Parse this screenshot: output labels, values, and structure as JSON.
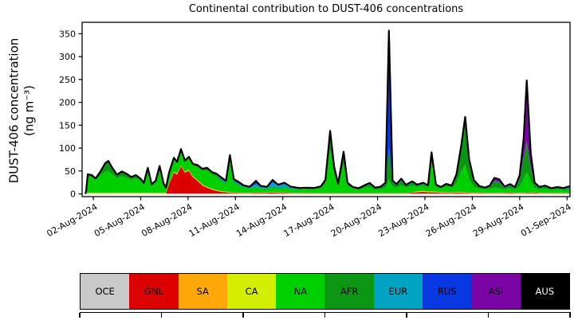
{
  "chart_data": {
    "type": "area",
    "title": "Continental contribution to DUST-406 concentrations",
    "ylabel_line1": "DUST-406 concentration",
    "ylabel_line2": "(ng m⁻³)",
    "ylim": [
      0,
      370
    ],
    "yticks": [
      0,
      50,
      100,
      150,
      200,
      250,
      300,
      350
    ],
    "xticks": [
      {
        "d": 1,
        "label": "02-Aug-2024"
      },
      {
        "d": 4,
        "label": "05-Aug-2024"
      },
      {
        "d": 7,
        "label": "08-Aug-2024"
      },
      {
        "d": 10,
        "label": "11-Aug-2024"
      },
      {
        "d": 13,
        "label": "14-Aug-2024"
      },
      {
        "d": 16,
        "label": "17-Aug-2024"
      },
      {
        "d": 19,
        "label": "20-Aug-2024"
      },
      {
        "d": 22,
        "label": "23-Aug-2024"
      },
      {
        "d": 25,
        "label": "26-Aug-2024"
      },
      {
        "d": 28,
        "label": "29-Aug-2024"
      },
      {
        "d": 31,
        "label": "01-Sep-2024"
      }
    ],
    "legend_position": "bottom",
    "grid": false,
    "total_line_color": "#000000",
    "regions": [
      {
        "code": "OCE",
        "color": "#c9c9c9",
        "label_color": "#000000"
      },
      {
        "code": "GNL",
        "color": "#dd0000",
        "label_color": "#000000"
      },
      {
        "code": "SA",
        "color": "#ffa808",
        "label_color": "#000000"
      },
      {
        "code": "CA",
        "color": "#d4ee00",
        "label_color": "#000000"
      },
      {
        "code": "NA",
        "color": "#00cf00",
        "label_color": "#000000"
      },
      {
        "code": "AFR",
        "color": "#0b9614",
        "label_color": "#000000"
      },
      {
        "code": "EUR",
        "color": "#00a3c2",
        "label_color": "#000000"
      },
      {
        "code": "RUS",
        "color": "#0839e0",
        "label_color": "#000000"
      },
      {
        "code": "ASI",
        "color": "#7a04a4",
        "label_color": "#000000"
      },
      {
        "code": "AUS",
        "color": "#000000",
        "label_color": "#ffffff"
      }
    ],
    "columns": [
      "x_days_from_01Aug2024",
      "OCE",
      "GNL",
      "SA",
      "CA",
      "NA",
      "AFR",
      "EUR",
      "RUS",
      "ASI",
      "AUS"
    ],
    "points": [
      [
        0.5,
        0,
        0,
        0,
        0,
        0,
        0,
        0,
        0,
        0,
        0
      ],
      [
        0.55,
        0.4,
        0,
        0.8,
        1.2,
        4,
        0.5,
        0,
        0.3,
        0,
        0
      ],
      [
        0.65,
        0.4,
        0,
        0.8,
        1.2,
        36,
        4,
        0,
        0.5,
        0,
        0
      ],
      [
        0.9,
        0.4,
        0,
        0.8,
        1.2,
        34,
        4,
        0,
        0.5,
        0,
        0
      ],
      [
        1.15,
        0.4,
        0,
        0.8,
        1.2,
        28,
        3,
        0,
        0.5,
        0,
        0
      ],
      [
        1.45,
        0.4,
        0,
        0.8,
        1.2,
        38,
        8,
        0,
        0.5,
        0,
        0
      ],
      [
        1.75,
        0.4,
        0,
        0.8,
        1.2,
        46,
        18,
        0,
        0.5,
        0,
        0
      ],
      [
        1.95,
        0.4,
        0,
        0.8,
        1.2,
        48,
        21,
        0,
        0.5,
        0,
        0
      ],
      [
        2.2,
        0.4,
        0,
        0.8,
        1.2,
        40,
        14,
        0,
        0.5,
        0,
        0
      ],
      [
        2.5,
        0.4,
        0,
        0.8,
        1.2,
        32,
        7,
        0,
        0.5,
        0,
        0
      ],
      [
        2.8,
        0.4,
        0,
        0.8,
        1.2,
        36,
        10,
        0,
        0.5,
        0,
        0
      ],
      [
        3.1,
        0.4,
        0,
        0.8,
        1.2,
        33,
        8,
        0,
        0.5,
        0,
        0
      ],
      [
        3.4,
        0.4,
        0,
        0.8,
        1.2,
        29,
        5,
        0,
        0.5,
        0,
        0
      ],
      [
        3.7,
        0.4,
        0,
        0.8,
        1.2,
        32,
        6,
        0,
        0.5,
        0,
        0
      ],
      [
        4.0,
        0.4,
        0,
        0.8,
        1.2,
        26,
        4,
        0,
        0.5,
        0,
        0
      ],
      [
        4.2,
        0.4,
        0,
        0.8,
        1.2,
        19,
        2,
        0,
        0.5,
        0,
        0
      ],
      [
        4.45,
        0.4,
        0,
        0.8,
        1.2,
        44,
        10,
        0,
        0.5,
        0,
        0
      ],
      [
        4.7,
        0.4,
        0,
        0.8,
        1.2,
        16,
        2,
        0,
        0.5,
        0,
        0
      ],
      [
        4.95,
        0.4,
        0,
        0.8,
        1.2,
        22,
        4,
        0,
        0.5,
        0,
        0
      ],
      [
        5.2,
        0.4,
        0,
        0.8,
        1.2,
        48,
        10,
        0,
        0.5,
        0,
        0
      ],
      [
        5.45,
        0.4,
        0,
        0.8,
        1.2,
        18,
        2,
        0,
        0.5,
        0,
        0
      ],
      [
        5.6,
        0.4,
        0,
        0.8,
        1.2,
        10,
        1,
        0,
        0.5,
        0,
        0
      ],
      [
        5.8,
        0.4,
        22,
        0.8,
        1.2,
        20,
        2,
        0,
        0.5,
        0,
        0
      ],
      [
        6.1,
        0.4,
        46,
        0.8,
        1.2,
        26,
        4,
        0,
        0.5,
        0,
        0
      ],
      [
        6.3,
        0.4,
        42,
        0.8,
        1.2,
        22,
        3,
        0,
        0.5,
        0,
        0
      ],
      [
        6.55,
        0.4,
        60,
        0.8,
        1.2,
        30,
        5,
        0,
        0.5,
        0,
        0
      ],
      [
        6.8,
        0.4,
        46,
        0.8,
        1.2,
        20,
        4,
        0,
        0.5,
        0,
        0
      ],
      [
        7.05,
        0.4,
        50,
        0.8,
        1.2,
        24,
        4,
        0,
        0.5,
        0,
        0
      ],
      [
        7.3,
        0.4,
        36,
        0.8,
        1.2,
        24,
        3,
        0,
        0.5,
        0,
        0
      ],
      [
        7.6,
        0.4,
        28,
        0.8,
        1.2,
        28,
        4,
        0,
        0.5,
        0,
        0
      ],
      [
        7.9,
        0.4,
        18,
        0.8,
        1.2,
        30,
        4,
        0,
        0.5,
        0,
        0
      ],
      [
        8.2,
        0.4,
        13,
        0.8,
        1.2,
        36,
        5,
        0,
        0.5,
        0,
        0
      ],
      [
        8.5,
        0.4,
        9,
        0.8,
        1.2,
        32,
        4,
        0,
        0.5,
        0,
        0
      ],
      [
        8.8,
        0.4,
        6,
        0.8,
        1.2,
        29,
        3,
        1.5,
        2,
        0,
        0
      ],
      [
        9.1,
        0.4,
        4,
        0.6,
        1.0,
        22,
        2,
        2.5,
        3.5,
        0,
        0
      ],
      [
        9.4,
        0.4,
        3,
        0.5,
        0.8,
        17,
        2,
        2,
        3,
        0,
        0
      ],
      [
        9.65,
        0.4,
        2,
        0.5,
        0.8,
        68,
        8,
        1.5,
        3,
        0.5,
        0
      ],
      [
        9.9,
        0.4,
        1.5,
        0.5,
        0.8,
        21,
        3,
        1.5,
        3.5,
        0,
        0
      ],
      [
        10.2,
        0.4,
        1.5,
        0.5,
        0.8,
        15,
        2,
        2.5,
        3.5,
        0,
        0
      ],
      [
        10.5,
        0.4,
        1,
        0.4,
        0.6,
        11,
        1.5,
        2,
        2,
        0,
        0
      ],
      [
        10.9,
        0.4,
        1,
        0.4,
        0.6,
        8.5,
        1,
        2,
        1.5,
        0,
        0
      ],
      [
        11.3,
        0.4,
        2,
        0.4,
        0.6,
        11,
        1.5,
        6,
        6,
        0.5,
        0
      ],
      [
        11.6,
        0.4,
        1.5,
        0.4,
        0.6,
        8.5,
        1,
        3,
        2,
        0,
        0
      ],
      [
        12.0,
        0.4,
        2,
        0.4,
        0.6,
        6.5,
        1,
        3,
        1.5,
        0,
        0
      ],
      [
        12.35,
        0.4,
        2.5,
        0.4,
        0.6,
        9.5,
        2,
        10,
        4.5,
        0.5,
        0
      ],
      [
        12.7,
        0.4,
        2,
        0.4,
        0.6,
        8,
        1.5,
        5,
        2,
        0,
        0
      ],
      [
        13.1,
        0.4,
        2,
        0.4,
        0.6,
        9.5,
        1.5,
        7,
        3,
        0,
        0
      ],
      [
        13.5,
        0.4,
        1,
        0.4,
        0.6,
        8,
        1,
        3.5,
        1,
        0,
        0
      ],
      [
        14.0,
        0.4,
        0.8,
        0.3,
        0.5,
        7.5,
        1,
        2,
        0.5,
        0,
        0
      ],
      [
        14.5,
        0.4,
        0.6,
        0.3,
        0.5,
        8.5,
        1,
        1.5,
        0.5,
        0,
        0
      ],
      [
        15.0,
        0.4,
        0.5,
        0.3,
        0.5,
        8.8,
        1.5,
        0.5,
        0.5,
        0,
        0
      ],
      [
        15.4,
        0.4,
        0.5,
        0.3,
        0.5,
        11,
        2.5,
        0.5,
        0.5,
        0,
        0
      ],
      [
        15.7,
        0.4,
        0.5,
        0.3,
        0.5,
        20,
        7.5,
        0.5,
        0.5,
        0.5,
        0
      ],
      [
        16.0,
        0.4,
        0.5,
        0.3,
        0.5,
        95,
        38,
        0.5,
        0.5,
        2,
        0
      ],
      [
        16.25,
        0.4,
        0.5,
        0.3,
        0.5,
        42,
        14,
        0.5,
        0.5,
        1,
        0
      ],
      [
        16.5,
        0.4,
        0.5,
        0.3,
        0.5,
        15,
        4,
        0.5,
        0.5,
        0.5,
        0
      ],
      [
        16.85,
        0.4,
        0.5,
        0.3,
        0.5,
        62,
        26,
        0.5,
        0.5,
        1.5,
        0
      ],
      [
        17.1,
        0.4,
        0.5,
        0.3,
        0.5,
        16,
        5,
        0.5,
        0.5,
        0.5,
        0
      ],
      [
        17.45,
        0.4,
        0.5,
        0.3,
        0.5,
        10,
        2,
        0.5,
        0.5,
        0,
        0
      ],
      [
        17.8,
        0.4,
        0.5,
        0.3,
        0.5,
        8,
        1.5,
        0.5,
        0.5,
        0,
        0
      ],
      [
        18.2,
        0.4,
        0.5,
        0.3,
        0.5,
        12,
        3.5,
        0.5,
        0.5,
        1,
        0
      ],
      [
        18.5,
        0.4,
        0.5,
        0.3,
        0.5,
        14,
        5,
        0.5,
        0.5,
        2,
        0
      ],
      [
        18.85,
        0.4,
        0.5,
        0.3,
        0.5,
        8,
        2.5,
        0.5,
        0.5,
        0.5,
        0
      ],
      [
        19.2,
        0.4,
        0.5,
        0.3,
        0.5,
        9,
        3.5,
        0.5,
        0.5,
        0.5,
        0
      ],
      [
        19.5,
        0.4,
        0.5,
        0.3,
        0.5,
        12,
        7,
        0.5,
        2,
        1,
        0
      ],
      [
        19.72,
        0.4,
        0.5,
        0.3,
        0.5,
        30,
        68,
        1,
        240,
        16,
        0
      ],
      [
        19.95,
        0.4,
        0.5,
        0.3,
        0.5,
        14,
        8,
        0.5,
        4,
        1,
        0
      ],
      [
        20.2,
        0.4,
        0.5,
        0.3,
        0.5,
        12,
        5,
        0.5,
        1.5,
        0.5,
        0
      ],
      [
        20.5,
        0.4,
        0.5,
        0.3,
        0.5,
        17,
        10,
        0.5,
        1.5,
        2.5,
        0
      ],
      [
        20.8,
        0.4,
        0.5,
        0.3,
        0.5,
        12,
        4,
        0.5,
        1,
        0.5,
        0
      ],
      [
        21.2,
        0.4,
        2.5,
        0.3,
        0.5,
        14,
        6,
        2,
        1,
        0.5,
        0
      ],
      [
        21.5,
        0.4,
        3,
        0.4,
        1.5,
        10,
        2.5,
        2,
        0.5,
        0,
        0
      ],
      [
        21.9,
        0.4,
        4,
        0.4,
        1.5,
        12,
        3,
        2.5,
        0.5,
        0,
        0
      ],
      [
        22.2,
        0.4,
        3,
        0.4,
        1.5,
        9,
        2,
        2,
        0.5,
        0,
        0
      ],
      [
        22.42,
        0.4,
        3,
        0.4,
        1.5,
        64,
        18,
        2,
        0.5,
        1,
        0
      ],
      [
        22.7,
        0.4,
        3,
        0.4,
        1.2,
        11,
        2.5,
        1.5,
        0.5,
        0,
        0
      ],
      [
        23.0,
        0.4,
        2,
        0.4,
        1.2,
        8,
        1.5,
        1,
        0.5,
        0,
        0
      ],
      [
        23.35,
        0.4,
        2,
        0.4,
        1.0,
        12,
        4,
        1,
        0.5,
        0.5,
        0
      ],
      [
        23.7,
        0.4,
        1.5,
        0.4,
        1.0,
        10,
        4,
        0.5,
        0.5,
        0,
        0
      ],
      [
        24.0,
        0.4,
        2.5,
        0.4,
        1.2,
        19,
        17,
        0.5,
        1,
        1,
        0
      ],
      [
        24.3,
        0.4,
        2,
        0.4,
        1.0,
        45,
        52,
        0.5,
        2,
        2,
        0
      ],
      [
        24.55,
        0.4,
        2,
        0.4,
        1.0,
        60,
        98,
        0.5,
        3,
        3,
        0
      ],
      [
        24.8,
        0.4,
        1.5,
        0.4,
        1.0,
        29,
        40,
        0.5,
        1.5,
        1.5,
        0
      ],
      [
        25.1,
        0.4,
        1,
        0.4,
        0.8,
        13,
        12,
        0.5,
        1,
        1,
        0
      ],
      [
        25.45,
        0.4,
        1.5,
        0.4,
        0.8,
        8.5,
        4,
        0.5,
        0.5,
        0.5,
        0
      ],
      [
        25.8,
        0.4,
        1,
        0.4,
        0.6,
        7.5,
        2.5,
        0.5,
        0.5,
        0.5,
        0
      ],
      [
        26.1,
        0.4,
        1,
        0.4,
        0.6,
        8.5,
        4,
        0.5,
        0.5,
        2,
        0
      ],
      [
        26.4,
        0.4,
        1,
        0.4,
        0.6,
        11.5,
        13.5,
        0.5,
        0.5,
        6.5,
        0
      ],
      [
        26.7,
        0.4,
        1,
        0.4,
        0.6,
        10.5,
        12,
        0.5,
        0.5,
        6,
        0
      ],
      [
        27.05,
        0.4,
        1,
        0.4,
        0.6,
        7.5,
        3,
        0.5,
        0.5,
        2,
        0
      ],
      [
        27.4,
        0.4,
        2,
        0.4,
        0.6,
        9,
        5.5,
        0.5,
        0.5,
        2.5,
        0
      ],
      [
        27.7,
        0.4,
        1,
        0.4,
        0.6,
        7.5,
        3,
        0.5,
        0.5,
        1,
        0
      ],
      [
        28.0,
        0.4,
        1,
        0.4,
        0.6,
        14,
        16,
        0.5,
        0.5,
        7,
        0
      ],
      [
        28.25,
        0.4,
        1,
        0.4,
        0.6,
        30,
        46,
        0.5,
        1,
        41,
        0
      ],
      [
        28.45,
        0.4,
        1.5,
        0.4,
        0.6,
        45,
        64,
        0.5,
        1.5,
        134,
        0
      ],
      [
        28.7,
        0.4,
        1.5,
        0.4,
        0.6,
        24,
        30,
        0.5,
        1,
        30,
        0
      ],
      [
        28.95,
        0.4,
        2,
        0.4,
        0.6,
        10,
        6.5,
        0.5,
        0.5,
        3.5,
        0
      ],
      [
        29.25,
        0.4,
        1,
        0.4,
        0.5,
        8,
        3,
        1,
        0.5,
        0.5,
        0
      ],
      [
        29.6,
        0.4,
        0.8,
        0.3,
        0.5,
        9.5,
        4,
        2,
        0.5,
        0,
        0
      ],
      [
        30.0,
        0.4,
        0.6,
        0.3,
        0.5,
        7,
        2,
        1.2,
        0.5,
        0,
        0
      ],
      [
        30.4,
        0.4,
        0.6,
        0.3,
        0.5,
        8,
        2.5,
        2,
        0.5,
        0,
        0
      ],
      [
        30.8,
        0.4,
        0.5,
        0.3,
        0.5,
        6,
        2,
        2.5,
        0.5,
        0,
        0
      ],
      [
        31.1,
        0.4,
        0.5,
        0.3,
        0.5,
        7,
        3,
        4,
        0.5,
        0,
        0
      ],
      [
        31.19,
        0.4,
        0.5,
        0.3,
        0.5,
        6,
        2.5,
        4,
        0.5,
        0,
        0
      ]
    ]
  }
}
